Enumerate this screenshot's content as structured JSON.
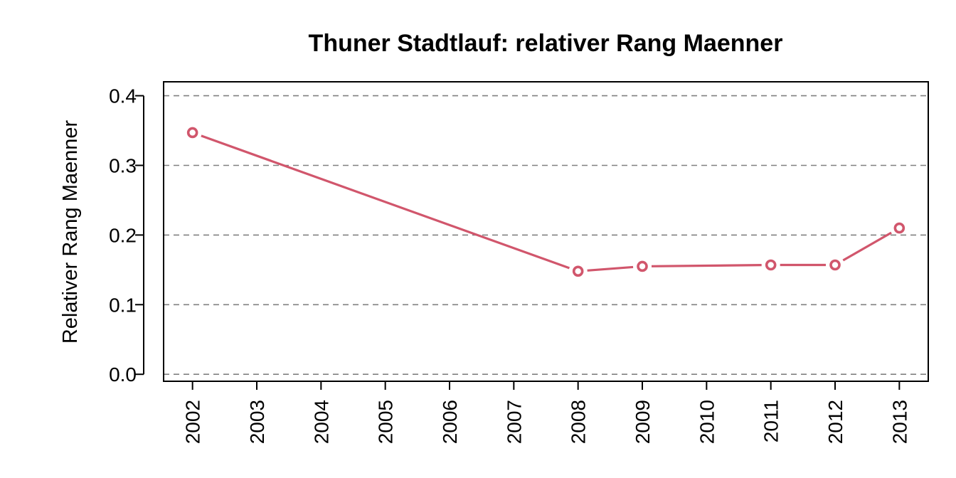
{
  "chart_data": {
    "type": "line",
    "title": "Thuner Stadtlauf: relativer Rang Maenner",
    "xlabel": "",
    "ylabel": "Relativer Rang Maenner",
    "categories": [
      "2002",
      "2003",
      "2004",
      "2005",
      "2006",
      "2007",
      "2008",
      "2009",
      "2010",
      "2011",
      "2012",
      "2013"
    ],
    "series": [
      {
        "name": "",
        "color": "#d1566c",
        "points": [
          {
            "x": 2002,
            "y": 0.347
          },
          {
            "x": 2008,
            "y": 0.148
          },
          {
            "x": 2009,
            "y": 0.155
          },
          {
            "x": 2011,
            "y": 0.157
          },
          {
            "x": 2012,
            "y": 0.157
          },
          {
            "x": 2013,
            "y": 0.21
          }
        ]
      }
    ],
    "yticks": [
      "0.0",
      "0.1",
      "0.2",
      "0.3",
      "0.4"
    ],
    "ylim": [
      -0.01,
      0.42
    ],
    "xlim": [
      2001.55,
      2013.45
    ],
    "grid": "horizontal dashed",
    "legend": "none",
    "marker": "open-circle",
    "colors": {
      "line": "#d1566c",
      "grid": "#808080",
      "axis": "#000000"
    }
  }
}
